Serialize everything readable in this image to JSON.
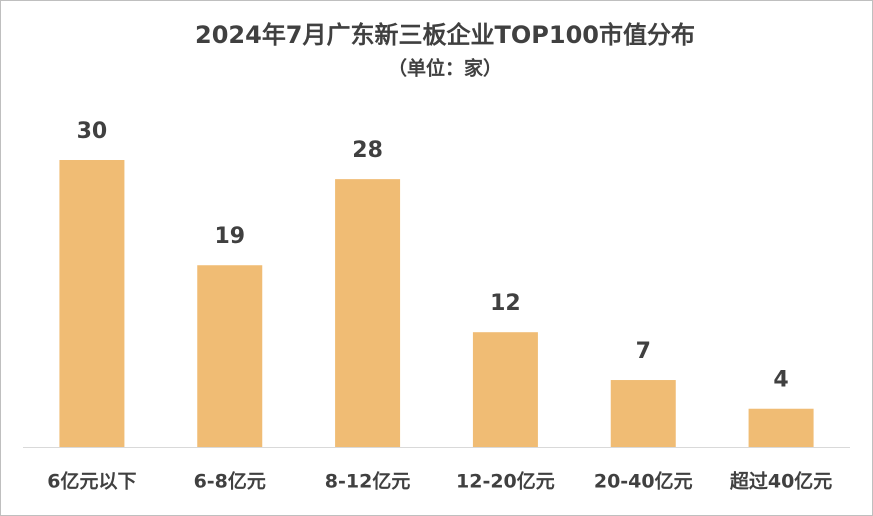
{
  "chart_data": {
    "type": "bar",
    "title": "2024年7月广东新三板企业TOP100市值分布",
    "subtitle": "（单位：家）",
    "categories": [
      "6亿元以下",
      "6-8亿元",
      "8-12亿元",
      "12-20亿元",
      "20-40亿元",
      "超过40亿元"
    ],
    "values": [
      30,
      19,
      28,
      12,
      7,
      4
    ],
    "color": "#f0bc74"
  }
}
